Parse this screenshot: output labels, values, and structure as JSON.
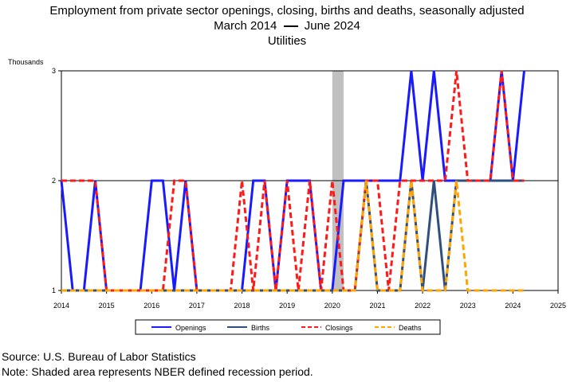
{
  "title": {
    "line1": "Employment from private sector openings, closing, births and deaths, seasonally adjusted",
    "line2a": "March 2014",
    "line2b": "June 2024",
    "line3": "Utilities"
  },
  "footer": {
    "source": "Source: U.S. Bureau of Labor Statistics",
    "note": "Note: Shaded area represents NBER defined recession period."
  },
  "chart_data": {
    "type": "line",
    "ylabel": "Thousands",
    "ylim": [
      1,
      3
    ],
    "yticks": [
      1,
      2,
      3
    ],
    "xlim": [
      2014,
      2025
    ],
    "xticks": [
      "2014",
      "2015",
      "2016",
      "2017",
      "2018",
      "2019",
      "2020",
      "2021",
      "2022",
      "2023",
      "2024",
      "2025"
    ],
    "grid_lines_y": [
      2
    ],
    "recession": {
      "start": 2020.0,
      "end": 2020.25
    },
    "legend_position": "bottom",
    "x": [
      2014.0,
      2014.25,
      2014.5,
      2014.75,
      2015.0,
      2015.25,
      2015.5,
      2015.75,
      2016.0,
      2016.25,
      2016.5,
      2016.75,
      2017.0,
      2017.25,
      2017.5,
      2017.75,
      2018.0,
      2018.25,
      2018.5,
      2018.75,
      2019.0,
      2019.25,
      2019.5,
      2019.75,
      2020.0,
      2020.25,
      2020.5,
      2020.75,
      2021.0,
      2021.25,
      2021.5,
      2021.75,
      2022.0,
      2022.25,
      2022.5,
      2022.75,
      2023.0,
      2023.25,
      2023.5,
      2023.75,
      2024.0,
      2024.25
    ],
    "series": [
      {
        "name": "Openings",
        "color": "#1a1aff",
        "style": "solid",
        "values": [
          2,
          1,
          1,
          2,
          1,
          1,
          1,
          1,
          2,
          2,
          1,
          2,
          1,
          1,
          1,
          1,
          1,
          2,
          2,
          1,
          2,
          2,
          2,
          1,
          1,
          2,
          2,
          2,
          2,
          2,
          2,
          3,
          2,
          3,
          2,
          2,
          2,
          2,
          2,
          3,
          2,
          3
        ]
      },
      {
        "name": "Births",
        "color": "#2f4f7f",
        "style": "solid",
        "values": [
          1,
          1,
          1,
          1,
          1,
          1,
          1,
          1,
          1,
          1,
          1,
          1,
          1,
          1,
          1,
          1,
          1,
          1,
          1,
          1,
          1,
          1,
          1,
          1,
          1,
          1,
          1,
          2,
          1,
          1,
          1,
          2,
          1,
          2,
          1,
          2,
          2,
          2,
          2,
          2,
          2,
          2
        ]
      },
      {
        "name": "Closings",
        "color": "#ff1a1a",
        "style": "dashed",
        "values": [
          2,
          2,
          2,
          2,
          1,
          1,
          1,
          1,
          1,
          1,
          2,
          2,
          1,
          1,
          1,
          1,
          2,
          1,
          2,
          1,
          2,
          1,
          2,
          1,
          2,
          1,
          1,
          2,
          2,
          1,
          2,
          2,
          2,
          2,
          2,
          3,
          2,
          2,
          2,
          3,
          2,
          2
        ]
      },
      {
        "name": "Deaths",
        "color": "#ffa500",
        "style": "dashed",
        "values": [
          1,
          1,
          1,
          1,
          1,
          1,
          1,
          1,
          1,
          1,
          1,
          1,
          1,
          1,
          1,
          1,
          1,
          1,
          1,
          1,
          1,
          1,
          1,
          1,
          1,
          1,
          1,
          2,
          1,
          1,
          1,
          2,
          1,
          1,
          1,
          2,
          1,
          1,
          1,
          1,
          1,
          1
        ]
      }
    ]
  }
}
